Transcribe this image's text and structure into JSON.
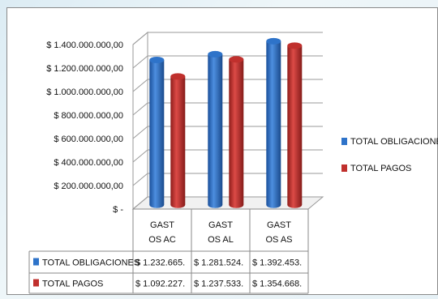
{
  "chart_data": {
    "type": "bar",
    "title": "",
    "xlabel": "",
    "ylabel": "",
    "categories": [
      "GAST OS AC",
      "GAST OS AL",
      "GAST OS AS"
    ],
    "category_lines": [
      [
        "GAST",
        "OS AC"
      ],
      [
        "GAST",
        "OS AL"
      ],
      [
        "GAST",
        "OS AS"
      ]
    ],
    "series": [
      {
        "name": "TOTAL OBLIGACIONES",
        "color": "#2e73c9",
        "values": [
          1232665000,
          1281524000,
          1392453000
        ],
        "table_labels": [
          "$ 1.232.665.",
          "$ 1.281.524.",
          "$ 1.392.453."
        ]
      },
      {
        "name": "TOTAL PAGOS",
        "color": "#c0302d",
        "values": [
          1092227000,
          1237533000,
          1354668000
        ],
        "table_labels": [
          "$ 1.092.227.",
          "$ 1.237.533.",
          "$ 1.354.668."
        ]
      }
    ],
    "ylim": [
      0,
      1400000000
    ],
    "yticks": [
      0,
      200000000,
      400000000,
      600000000,
      800000000,
      1000000000,
      1200000000,
      1400000000
    ],
    "ytick_labels": [
      "$ -",
      "$ 200.000.000,00",
      "$ 400.000.000,00",
      "$ 600.000.000,00",
      "$ 800.000.000,00",
      "$ 1.000.000.000,00",
      "$ 1.200.000.000,00",
      "$ 1.400.000.000,00"
    ],
    "grid": true,
    "legend_position": "right",
    "style": "3d-cylinder",
    "data_table": true
  }
}
